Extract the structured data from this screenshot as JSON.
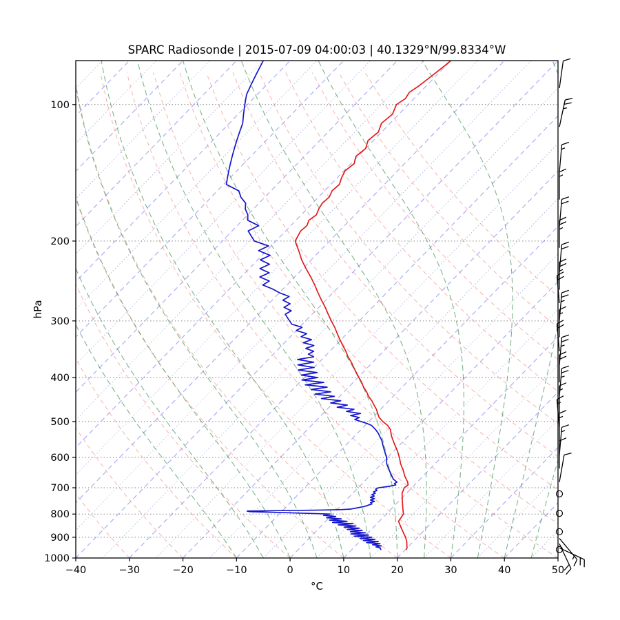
{
  "title": "SPARC Radiosonde | 2015-07-09 04:00:03 | 40.1329°N/99.8334°W",
  "axes": {
    "x_label": "°C",
    "y_label": "hPa",
    "x_range": [
      -40,
      50
    ],
    "p_range": [
      80,
      1000
    ],
    "x_tick_values": [
      -40,
      -30,
      -20,
      -10,
      0,
      10,
      20,
      30,
      40,
      50
    ],
    "x_tick_labels": [
      "−40",
      "−30",
      "−20",
      "−10",
      "0",
      "10",
      "20",
      "30",
      "40",
      "50"
    ],
    "y_tick_values": [
      100,
      200,
      300,
      400,
      500,
      600,
      700,
      800,
      900,
      1000
    ],
    "y_tick_labels": [
      "100",
      "200",
      "300",
      "400",
      "500",
      "600",
      "700",
      "800",
      "900",
      "1000"
    ]
  },
  "colors": {
    "temperature": "#e31a1a",
    "dewpoint": "#1515cc",
    "isotherm": "rgba(105,105,235,0.55)",
    "isotherm_minor": "rgba(100,100,195,0.45)",
    "dry_adiabat": "rgba(242,112,112,0.5)",
    "moist_adiabat": "rgba(42,135,66,0.62)",
    "pressure_grid": "rgba(30,30,30,0.55)",
    "frame": "#000000",
    "barb": "#000000"
  },
  "chart_data": {
    "type": "line",
    "title": "SPARC Radiosonde | 2015-07-09 04:00:03 | 40.1329°N/99.8334°W",
    "xlabel": "°C",
    "ylabel": "hPa",
    "x_range_c": [
      -40,
      50
    ],
    "pressure_range_hpa": [
      80,
      1000
    ],
    "grid": "skew-t log-p",
    "series": [
      {
        "name": "temperature",
        "units": "degC vs hPa",
        "points": [
          [
            960,
            20.2
          ],
          [
            950,
            20.0
          ],
          [
            940,
            19.6
          ],
          [
            930,
            19.2
          ],
          [
            920,
            18.8
          ],
          [
            910,
            18.3
          ],
          [
            900,
            17.8
          ],
          [
            880,
            16.6
          ],
          [
            860,
            15.4
          ],
          [
            850,
            14.8
          ],
          [
            830,
            13.6
          ],
          [
            800,
            13.2
          ],
          [
            780,
            12.2
          ],
          [
            760,
            11.2
          ],
          [
            740,
            10.2
          ],
          [
            720,
            9.2
          ],
          [
            700,
            8.6
          ],
          [
            690,
            8.8
          ],
          [
            680,
            8.2
          ],
          [
            660,
            6.6
          ],
          [
            640,
            5.2
          ],
          [
            620,
            3.6
          ],
          [
            600,
            2.2
          ],
          [
            580,
            0.6
          ],
          [
            560,
            -1.2
          ],
          [
            540,
            -3.0
          ],
          [
            530,
            -3.8
          ],
          [
            520,
            -4.6
          ],
          [
            510,
            -5.8
          ],
          [
            500,
            -7.4
          ],
          [
            490,
            -8.8
          ],
          [
            480,
            -9.8
          ],
          [
            470,
            -10.8
          ],
          [
            460,
            -12.0
          ],
          [
            450,
            -13.2
          ],
          [
            440,
            -14.6
          ],
          [
            430,
            -15.8
          ],
          [
            420,
            -17.2
          ],
          [
            410,
            -18.4
          ],
          [
            400,
            -19.8
          ],
          [
            390,
            -21.2
          ],
          [
            380,
            -22.6
          ],
          [
            370,
            -24.0
          ],
          [
            360,
            -25.6
          ],
          [
            350,
            -27.0
          ],
          [
            340,
            -28.6
          ],
          [
            330,
            -30.2
          ],
          [
            320,
            -31.8
          ],
          [
            310,
            -33.4
          ],
          [
            300,
            -35.2
          ],
          [
            290,
            -37.0
          ],
          [
            280,
            -38.8
          ],
          [
            270,
            -40.8
          ],
          [
            260,
            -42.8
          ],
          [
            250,
            -44.8
          ],
          [
            240,
            -47.0
          ],
          [
            230,
            -49.4
          ],
          [
            220,
            -51.8
          ],
          [
            210,
            -54.0
          ],
          [
            205,
            -55.2
          ],
          [
            200,
            -56.4
          ],
          [
            195,
            -56.8
          ],
          [
            190,
            -57.2
          ],
          [
            185,
            -57.0
          ],
          [
            180,
            -57.6
          ],
          [
            175,
            -57.2
          ],
          [
            170,
            -57.8
          ],
          [
            165,
            -58.2
          ],
          [
            160,
            -58.0
          ],
          [
            155,
            -58.6
          ],
          [
            150,
            -58.4
          ],
          [
            145,
            -59.2
          ],
          [
            140,
            -59.8
          ],
          [
            135,
            -59.4
          ],
          [
            130,
            -60.4
          ],
          [
            125,
            -60.0
          ],
          [
            120,
            -61.0
          ],
          [
            115,
            -60.6
          ],
          [
            110,
            -61.6
          ],
          [
            105,
            -61.2
          ],
          [
            100,
            -62.2
          ],
          [
            97,
            -61.6
          ],
          [
            94,
            -62.0
          ],
          [
            91,
            -61.4
          ],
          [
            88,
            -61.0
          ],
          [
            85,
            -60.6
          ],
          [
            82,
            -60.2
          ],
          [
            80,
            -60.0
          ]
        ]
      },
      {
        "name": "dewpoint",
        "units": "degC vs hPa",
        "points": [
          [
            960,
            15.5
          ],
          [
            950,
            15.0
          ],
          [
            945,
            14.0
          ],
          [
            940,
            14.8
          ],
          [
            935,
            13.0
          ],
          [
            930,
            14.2
          ],
          [
            925,
            11.5
          ],
          [
            920,
            13.5
          ],
          [
            915,
            10.5
          ],
          [
            910,
            12.5
          ],
          [
            905,
            9.5
          ],
          [
            900,
            11.5
          ],
          [
            895,
            8.0
          ],
          [
            890,
            10.5
          ],
          [
            885,
            7.0
          ],
          [
            880,
            9.5
          ],
          [
            875,
            6.5
          ],
          [
            870,
            8.5
          ],
          [
            865,
            5.5
          ],
          [
            860,
            7.5
          ],
          [
            855,
            4.5
          ],
          [
            850,
            6.5
          ],
          [
            845,
            3.0
          ],
          [
            840,
            5.5
          ],
          [
            835,
            1.5
          ],
          [
            830,
            4.0
          ],
          [
            825,
            0.5
          ],
          [
            820,
            2.5
          ],
          [
            815,
            -0.5
          ],
          [
            810,
            1.0
          ],
          [
            805,
            -1.5
          ],
          [
            800,
            -0.5
          ],
          [
            795,
            -8.0
          ],
          [
            790,
            -16.0
          ],
          [
            788,
            -16.5
          ],
          [
            786,
            -10.0
          ],
          [
            784,
            -3.0
          ],
          [
            782,
            1.0
          ],
          [
            780,
            2.5
          ],
          [
            775,
            3.5
          ],
          [
            770,
            4.5
          ],
          [
            765,
            5.0
          ],
          [
            760,
            5.5
          ],
          [
            755,
            5.0
          ],
          [
            750,
            5.5
          ],
          [
            745,
            4.5
          ],
          [
            740,
            5.0
          ],
          [
            735,
            4.0
          ],
          [
            730,
            4.5
          ],
          [
            725,
            3.8
          ],
          [
            720,
            4.2
          ],
          [
            715,
            3.6
          ],
          [
            710,
            4.0
          ],
          [
            705,
            3.5
          ],
          [
            700,
            3.8
          ],
          [
            695,
            5.5
          ],
          [
            690,
            6.5
          ],
          [
            685,
            6.0
          ],
          [
            680,
            6.2
          ],
          [
            670,
            5.0
          ],
          [
            660,
            4.2
          ],
          [
            650,
            3.4
          ],
          [
            640,
            2.6
          ],
          [
            630,
            1.8
          ],
          [
            620,
            1.0
          ],
          [
            610,
            0.4
          ],
          [
            600,
            -0.2
          ],
          [
            590,
            -1.0
          ],
          [
            580,
            -1.8
          ],
          [
            570,
            -2.6
          ],
          [
            560,
            -3.4
          ],
          [
            550,
            -4.2
          ],
          [
            540,
            -5.2
          ],
          [
            530,
            -6.2
          ],
          [
            520,
            -7.4
          ],
          [
            510,
            -8.8
          ],
          [
            505,
            -10.0
          ],
          [
            500,
            -11.5
          ],
          [
            495,
            -13.0
          ],
          [
            490,
            -12.5
          ],
          [
            485,
            -14.5
          ],
          [
            480,
            -13.0
          ],
          [
            475,
            -16.0
          ],
          [
            470,
            -15.0
          ],
          [
            465,
            -18.5
          ],
          [
            460,
            -17.0
          ],
          [
            455,
            -20.5
          ],
          [
            450,
            -19.0
          ],
          [
            445,
            -23.0
          ],
          [
            440,
            -21.0
          ],
          [
            435,
            -25.0
          ],
          [
            430,
            -22.5
          ],
          [
            425,
            -26.5
          ],
          [
            420,
            -24.0
          ],
          [
            415,
            -28.5
          ],
          [
            410,
            -25.5
          ],
          [
            405,
            -30.0
          ],
          [
            400,
            -27.5
          ],
          [
            395,
            -31.0
          ],
          [
            390,
            -28.5
          ],
          [
            385,
            -32.5
          ],
          [
            380,
            -30.0
          ],
          [
            375,
            -33.5
          ],
          [
            370,
            -31.0
          ],
          [
            365,
            -34.5
          ],
          [
            360,
            -32.0
          ],
          [
            355,
            -33.5
          ],
          [
            350,
            -33.0
          ],
          [
            345,
            -35.0
          ],
          [
            340,
            -34.0
          ],
          [
            335,
            -36.5
          ],
          [
            330,
            -35.5
          ],
          [
            325,
            -38.0
          ],
          [
            320,
            -37.5
          ],
          [
            315,
            -40.0
          ],
          [
            310,
            -39.5
          ],
          [
            305,
            -42.0
          ],
          [
            300,
            -43.0
          ],
          [
            295,
            -44.0
          ],
          [
            290,
            -45.0
          ],
          [
            285,
            -44.5
          ],
          [
            280,
            -46.5
          ],
          [
            275,
            -46.0
          ],
          [
            270,
            -48.0
          ],
          [
            265,
            -47.5
          ],
          [
            260,
            -50.0
          ],
          [
            255,
            -52.0
          ],
          [
            250,
            -54.5
          ],
          [
            245,
            -54.0
          ],
          [
            240,
            -56.5
          ],
          [
            235,
            -55.5
          ],
          [
            230,
            -58.0
          ],
          [
            225,
            -57.0
          ],
          [
            220,
            -59.5
          ],
          [
            215,
            -58.5
          ],
          [
            210,
            -61.5
          ],
          [
            205,
            -60.5
          ],
          [
            200,
            -64.0
          ],
          [
            195,
            -65.5
          ],
          [
            190,
            -67.0
          ],
          [
            185,
            -66.0
          ],
          [
            180,
            -69.0
          ],
          [
            175,
            -70.0
          ],
          [
            170,
            -71.5
          ],
          [
            165,
            -72.5
          ],
          [
            160,
            -74.5
          ],
          [
            155,
            -76.0
          ],
          [
            150,
            -79.5
          ],
          [
            145,
            -80.5
          ],
          [
            140,
            -81.5
          ],
          [
            135,
            -82.5
          ],
          [
            130,
            -83.5
          ],
          [
            125,
            -84.5
          ],
          [
            120,
            -85.5
          ],
          [
            115,
            -86.5
          ],
          [
            110,
            -87.5
          ],
          [
            105,
            -89.0
          ],
          [
            100,
            -90.5
          ],
          [
            95,
            -92.0
          ],
          [
            90,
            -93.0
          ],
          [
            85,
            -94.0
          ],
          [
            80,
            -95.0
          ]
        ]
      }
    ],
    "wind_barbs": [
      {
        "p": 92,
        "speed": 10,
        "dir": 8
      },
      {
        "p": 112,
        "speed": 25,
        "dir": 12
      },
      {
        "p": 141,
        "speed": 15,
        "dir": 5
      },
      {
        "p": 162,
        "speed": 15,
        "dir": 0
      },
      {
        "p": 186,
        "speed": 20,
        "dir": 5
      },
      {
        "p": 207,
        "speed": 25,
        "dir": 0
      },
      {
        "p": 234,
        "speed": 20,
        "dir": 5
      },
      {
        "p": 256,
        "speed": 25,
        "dir": 0
      },
      {
        "p": 274,
        "speed": 20,
        "dir": 355
      },
      {
        "p": 299,
        "speed": 25,
        "dir": 5
      },
      {
        "p": 326,
        "speed": 15,
        "dir": 0
      },
      {
        "p": 350,
        "speed": 20,
        "dir": 355
      },
      {
        "p": 375,
        "speed": 25,
        "dir": 5
      },
      {
        "p": 410,
        "speed": 20,
        "dir": 0
      },
      {
        "p": 439,
        "speed": 25,
        "dir": 5
      },
      {
        "p": 480,
        "speed": 15,
        "dir": 0
      },
      {
        "p": 514,
        "speed": 15,
        "dir": 355
      },
      {
        "p": 552,
        "speed": 15,
        "dir": 0
      },
      {
        "p": 592,
        "speed": 15,
        "dir": 5
      },
      {
        "p": 635,
        "speed": 10,
        "dir": 0
      },
      {
        "p": 680,
        "speed": 10,
        "dir": 10
      },
      {
        "p": 722,
        "speed": 0,
        "dir": 0
      },
      {
        "p": 797,
        "speed": 0,
        "dir": 0
      },
      {
        "p": 875,
        "speed": 0,
        "dir": 0
      },
      {
        "p": 905,
        "speed": 15,
        "dir": 140
      },
      {
        "p": 930,
        "speed": 20,
        "dir": 155
      },
      {
        "p": 950,
        "speed": 20,
        "dir": 115
      },
      {
        "p": 958,
        "speed": 0,
        "dir": 0
      }
    ]
  }
}
